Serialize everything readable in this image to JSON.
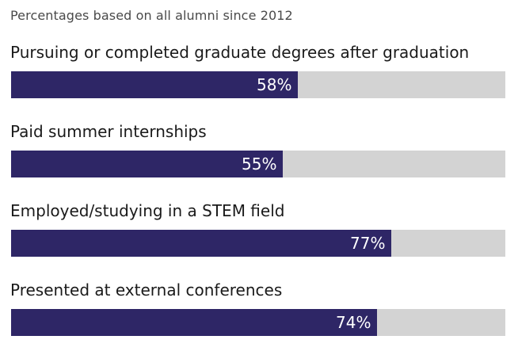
{
  "chart_data": {
    "type": "bar",
    "orientation": "horizontal",
    "subtitle": "Percentages based on all alumni since 2012",
    "categories": [
      "Pursuing or completed graduate degrees after graduation",
      "Paid summer internships",
      "Employed/studying in a STEM field",
      "Presented at external conferences"
    ],
    "values": [
      58,
      55,
      77,
      74
    ],
    "value_labels": [
      "58%",
      "55%",
      "77%",
      "74%"
    ],
    "xlim": [
      0,
      100
    ],
    "grid": false,
    "bar_color": "#2e2666",
    "track_color": "#d3d3d3",
    "value_label_color": "#ffffff"
  }
}
